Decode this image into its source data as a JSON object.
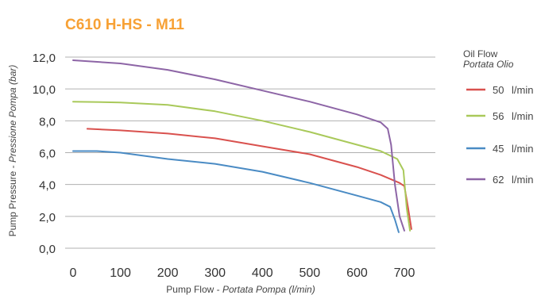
{
  "chart_data": {
    "type": "line",
    "title": "C610 H-HS  - M11",
    "title_color": "#f7a135",
    "xlabel": {
      "main": "Pump Flow - ",
      "italic": "Portata Pompa (l/min)"
    },
    "ylabel": {
      "main": "Pump Pressure - ",
      "italic": "Pressione Pompa (bar)"
    },
    "xlim": [
      0,
      700
    ],
    "ylim": [
      0,
      12
    ],
    "x_ticks": [
      0,
      100,
      200,
      300,
      400,
      500,
      600,
      700
    ],
    "x_tick_labels": [
      "0",
      "100",
      "200",
      "300",
      "400",
      "500",
      "600",
      "700"
    ],
    "y_ticks": [
      0,
      2,
      4,
      6,
      8,
      10,
      12
    ],
    "y_tick_labels": [
      "0,0",
      "2,0",
      "4,0",
      "6,0",
      "8,0",
      "10,0",
      "12,0"
    ],
    "grid": "horizontal",
    "grid_color": "#b0b0b0",
    "legend": {
      "title": "Oil Flow",
      "subtitle": "Portata Olio",
      "placement": "right"
    },
    "series": [
      {
        "name": "50",
        "unit": "l/min",
        "color": "#d9514e",
        "points": [
          [
            30,
            7.5
          ],
          [
            100,
            7.4
          ],
          [
            200,
            7.2
          ],
          [
            300,
            6.9
          ],
          [
            400,
            6.4
          ],
          [
            500,
            5.9
          ],
          [
            600,
            5.1
          ],
          [
            650,
            4.6
          ],
          [
            690,
            4.1
          ],
          [
            700,
            3.9
          ],
          [
            708,
            2.5
          ],
          [
            715,
            1.2
          ]
        ]
      },
      {
        "name": "56",
        "unit": "l/min",
        "color": "#a9c95a",
        "points": [
          [
            0,
            9.2
          ],
          [
            100,
            9.15
          ],
          [
            200,
            9.0
          ],
          [
            300,
            8.6
          ],
          [
            400,
            8.0
          ],
          [
            500,
            7.3
          ],
          [
            600,
            6.5
          ],
          [
            650,
            6.1
          ],
          [
            685,
            5.6
          ],
          [
            698,
            4.9
          ],
          [
            705,
            2.5
          ],
          [
            712,
            1.1
          ]
        ]
      },
      {
        "name": "45",
        "unit": "l/min",
        "color": "#4a8bc4",
        "points": [
          [
            0,
            6.1
          ],
          [
            50,
            6.1
          ],
          [
            100,
            6.0
          ],
          [
            200,
            5.6
          ],
          [
            300,
            5.3
          ],
          [
            400,
            4.8
          ],
          [
            500,
            4.1
          ],
          [
            600,
            3.3
          ],
          [
            650,
            2.9
          ],
          [
            670,
            2.6
          ],
          [
            680,
            1.8
          ],
          [
            688,
            1.0
          ]
        ]
      },
      {
        "name": "62",
        "unit": "l/min",
        "color": "#8d65a6",
        "points": [
          [
            0,
            11.8
          ],
          [
            100,
            11.6
          ],
          [
            200,
            11.2
          ],
          [
            300,
            10.6
          ],
          [
            400,
            9.9
          ],
          [
            500,
            9.2
          ],
          [
            600,
            8.4
          ],
          [
            650,
            7.9
          ],
          [
            665,
            7.5
          ],
          [
            672,
            6.5
          ],
          [
            680,
            4.0
          ],
          [
            690,
            2.0
          ],
          [
            700,
            1.1
          ]
        ]
      }
    ]
  }
}
